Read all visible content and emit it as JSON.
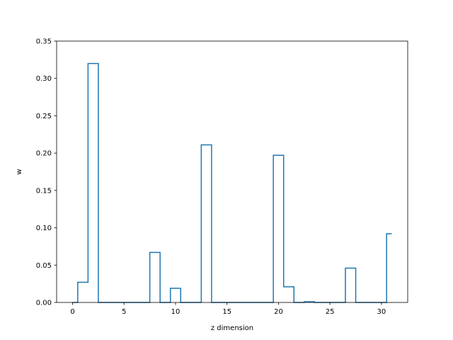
{
  "chart_data": {
    "type": "line",
    "drawstyle": "steps-mid",
    "xlabel": "z dimension",
    "ylabel": "w",
    "xlim": [
      -1.55,
      32.55
    ],
    "ylim": [
      0,
      0.35
    ],
    "xticks": [
      0,
      5,
      10,
      15,
      20,
      25,
      30
    ],
    "xtick_labels": [
      "0",
      "5",
      "10",
      "15",
      "20",
      "25",
      "30"
    ],
    "yticks": [
      0,
      0.05,
      0.1,
      0.15,
      0.2,
      0.25,
      0.3,
      0.35
    ],
    "ytick_labels": [
      "0.00",
      "0.05",
      "0.10",
      "0.15",
      "0.20",
      "0.25",
      "0.30",
      "0.35"
    ],
    "grid": false,
    "color": "#1f77b4",
    "x": [
      0,
      1,
      2,
      3,
      4,
      5,
      6,
      7,
      8,
      9,
      10,
      11,
      12,
      13,
      14,
      15,
      16,
      17,
      18,
      19,
      20,
      21,
      22,
      23,
      24,
      25,
      26,
      27,
      28,
      29,
      30,
      31
    ],
    "values": [
      0,
      0.027,
      0.32,
      0,
      0,
      0,
      0,
      0,
      0.067,
      0,
      0.019,
      0,
      0,
      0.211,
      0,
      0,
      0,
      0,
      0,
      0,
      0.197,
      0.021,
      0,
      0.001,
      0,
      0,
      0,
      0.046,
      0,
      0,
      0,
      0.092
    ]
  }
}
